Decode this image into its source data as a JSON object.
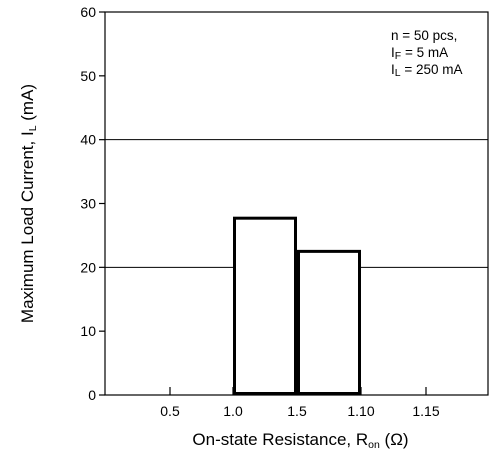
{
  "chart_data": {
    "type": "bar",
    "xlabel": "On-state Resistance, R",
    "xlabel_sub": "on",
    "xlabel_unit": " (Ω)",
    "ylabel": "Maximum Load Current, I",
    "ylabel_sub": "L",
    "ylabel_unit": " (mA)",
    "x_ticks": [
      "0.5",
      "1.0",
      "1.5",
      "1.10",
      "1.15"
    ],
    "y_ticks": [
      0,
      10,
      20,
      30,
      40,
      50,
      60
    ],
    "ylim": [
      0,
      60
    ],
    "grid_y": [
      20,
      40
    ],
    "bars": [
      {
        "x_start": "1.0",
        "x_end": "1.5",
        "value": 27.7
      },
      {
        "x_start": "1.5",
        "x_end": "1.10",
        "value": 22.5
      }
    ],
    "annotations": [
      {
        "prefix": "n = ",
        "sub": "",
        "suffix": " 50 pcs,"
      },
      {
        "prefix": "I",
        "sub": "F",
        "suffix": " = 5 mA"
      },
      {
        "prefix": "I",
        "sub": "L",
        "suffix": " = 250 mA"
      }
    ],
    "colors": {
      "bar_stroke": "#000000",
      "bar_fill": "#ffffff",
      "grid": "#000000"
    }
  }
}
